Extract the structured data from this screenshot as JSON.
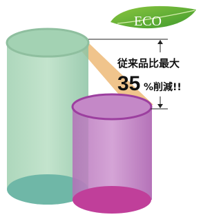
{
  "badge": {
    "label": "ECO"
  },
  "claim": {
    "line1": "従来品比最大",
    "number": "35",
    "suffix": "%削減!!"
  }
}
